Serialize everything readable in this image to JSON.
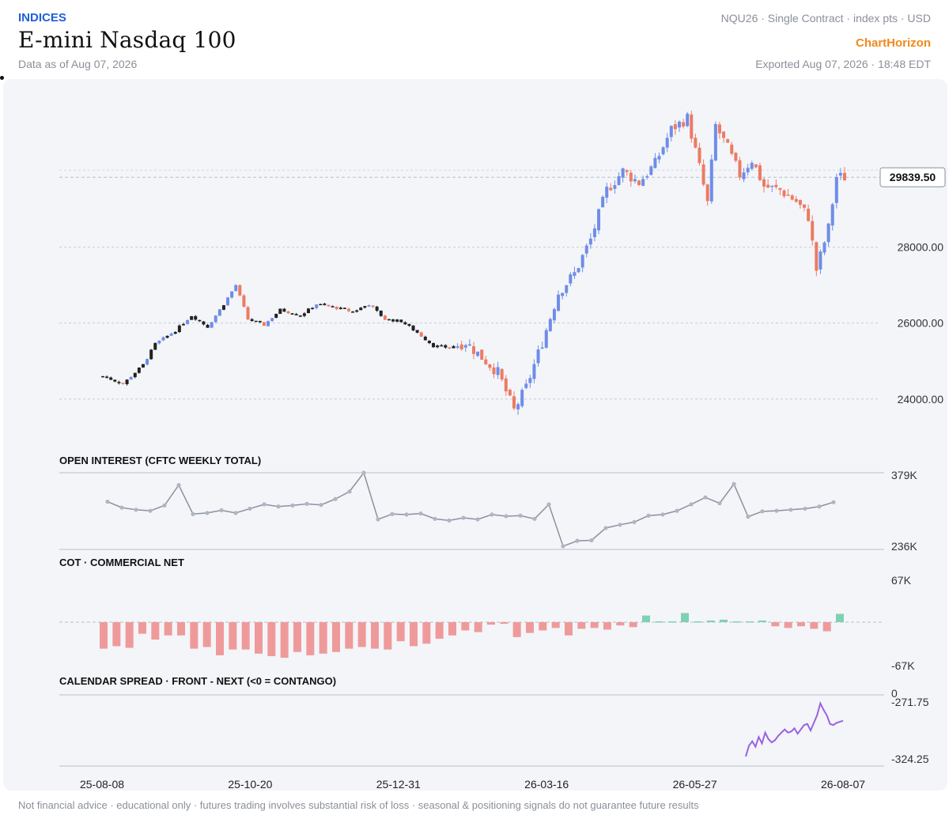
{
  "header": {
    "category": "INDICES",
    "title": "E-mini Nasdaq 100",
    "as_of": "Data as of Aug 07, 2026",
    "meta": "NQU26 · Single Contract · index pts · USD",
    "brand": "ChartHorizon",
    "exported": "Exported Aug 07, 2026 · 18:48 EDT"
  },
  "footer": {
    "disclaimer": "Not financial advice · educational only · futures trading involves substantial risk of loss · seasonal & positioning signals do not guarantee future results"
  },
  "colors": {
    "up": "#6f8de6",
    "down": "#ec7b63",
    "line": "#8a919e",
    "cot_neg": "#ef9a9a",
    "cot_pos": "#7fd1b2",
    "spread": "#9a63e0",
    "brand": "#f08a1c",
    "category": "#1f5fd6"
  },
  "chart_data": {
    "type": "candlestick",
    "x_tick_labels": [
      "25-08-08",
      "25-10-20",
      "25-12-31",
      "26-03-16",
      "26-05-27",
      "26-08-07"
    ],
    "x_range": [
      "2025-08-08",
      "2026-08-07"
    ],
    "price": {
      "y_ticks": [
        24000,
        26000,
        28000
      ],
      "y_tick_labels": [
        "24000.00",
        "26000.00",
        "28000.00"
      ],
      "ylim": [
        23100,
        31800
      ],
      "last_price": 29839.5,
      "last_price_label": "29839.50",
      "anchors": [
        [
          0,
          24600
        ],
        [
          5,
          24400
        ],
        [
          10,
          24900
        ],
        [
          13,
          25450
        ],
        [
          18,
          25800
        ],
        [
          22,
          26200
        ],
        [
          26,
          25900
        ],
        [
          30,
          26500
        ],
        [
          33,
          27000
        ],
        [
          36,
          26100
        ],
        [
          40,
          25950
        ],
        [
          44,
          26350
        ],
        [
          49,
          26200
        ],
        [
          53,
          26500
        ],
        [
          58,
          26400
        ],
        [
          62,
          26300
        ],
        [
          66,
          26500
        ],
        [
          70,
          26100
        ],
        [
          74,
          26050
        ],
        [
          78,
          25750
        ],
        [
          82,
          25400
        ],
        [
          86,
          25350
        ],
        [
          90,
          25500
        ],
        [
          94,
          25100
        ],
        [
          98,
          24700
        ],
        [
          102,
          23700
        ],
        [
          105,
          24300
        ],
        [
          109,
          25500
        ],
        [
          113,
          26800
        ],
        [
          117,
          27300
        ],
        [
          121,
          28200
        ],
        [
          125,
          29500
        ],
        [
          129,
          30000
        ],
        [
          133,
          29700
        ],
        [
          137,
          30200
        ],
        [
          141,
          31100
        ],
        [
          145,
          31400
        ],
        [
          148,
          30100
        ],
        [
          150,
          29150
        ],
        [
          152,
          31200
        ],
        [
          155,
          30600
        ],
        [
          158,
          29900
        ],
        [
          161,
          30300
        ],
        [
          164,
          29600
        ],
        [
          168,
          29500
        ],
        [
          172,
          29200
        ],
        [
          175,
          28800
        ],
        [
          177,
          27400
        ],
        [
          180,
          28500
        ],
        [
          182,
          29850
        ],
        [
          184,
          29839.5
        ]
      ],
      "candle_count": 185
    },
    "open_interest": {
      "title": "OPEN INTEREST (CFTC WEEKLY TOTAL)",
      "y_tick_labels": [
        "379K",
        "236K"
      ],
      "ylim": [
        236000,
        379000
      ],
      "values": [
        325000,
        314000,
        310000,
        308000,
        318000,
        356000,
        302000,
        304000,
        309000,
        304000,
        312000,
        320000,
        316000,
        318000,
        321000,
        319000,
        330000,
        344000,
        379000,
        292000,
        302000,
        301000,
        303000,
        293000,
        290000,
        295000,
        292000,
        301000,
        298000,
        299000,
        293000,
        320000,
        242000,
        252000,
        253000,
        276000,
        282000,
        287000,
        299000,
        301000,
        308000,
        320000,
        333000,
        322000,
        358000,
        297000,
        307000,
        308000,
        310000,
        312000,
        316000,
        324000
      ]
    },
    "cot": {
      "title": "COT · COMMERCIAL NET",
      "y_tick_labels": [
        "67K",
        "-67K"
      ],
      "ylim": [
        -67000,
        67000
      ],
      "values": [
        -32000,
        -29000,
        -31000,
        -14000,
        -21000,
        -16000,
        -16000,
        -32000,
        -30000,
        -40000,
        -33000,
        -33000,
        -38000,
        -41000,
        -43000,
        -36000,
        -40000,
        -38000,
        -36000,
        -32000,
        -30000,
        -32000,
        -33000,
        -23000,
        -29000,
        -26000,
        -20000,
        -16000,
        -10000,
        -12000,
        -3000,
        -2000,
        -18000,
        -13000,
        -10000,
        -7000,
        -16000,
        -8000,
        -7000,
        -9000,
        -4000,
        -6000,
        8000,
        1000,
        1000,
        11000,
        1000,
        2000,
        3000,
        1000,
        1000,
        2000,
        -5000,
        -7000,
        -5000,
        -8000,
        -11000,
        10000
      ]
    },
    "calendar_spread": {
      "title": "CALENDAR SPREAD · FRONT - NEXT (<0 = CONTANGO)",
      "y_tick_labels": [
        "0",
        "-271.75",
        "-324.25"
      ],
      "ylim": [
        -324.25,
        -271.75
      ],
      "values": [
        -322,
        -312,
        -308,
        -313,
        -304,
        -310,
        -300,
        -306,
        -309,
        -307,
        -303,
        -300,
        -297,
        -300,
        -299,
        -296,
        -301,
        -297,
        -293,
        -292,
        -298,
        -291,
        -284,
        -273,
        -279,
        -284,
        -292,
        -293,
        -291,
        -290,
        -289
      ]
    }
  }
}
